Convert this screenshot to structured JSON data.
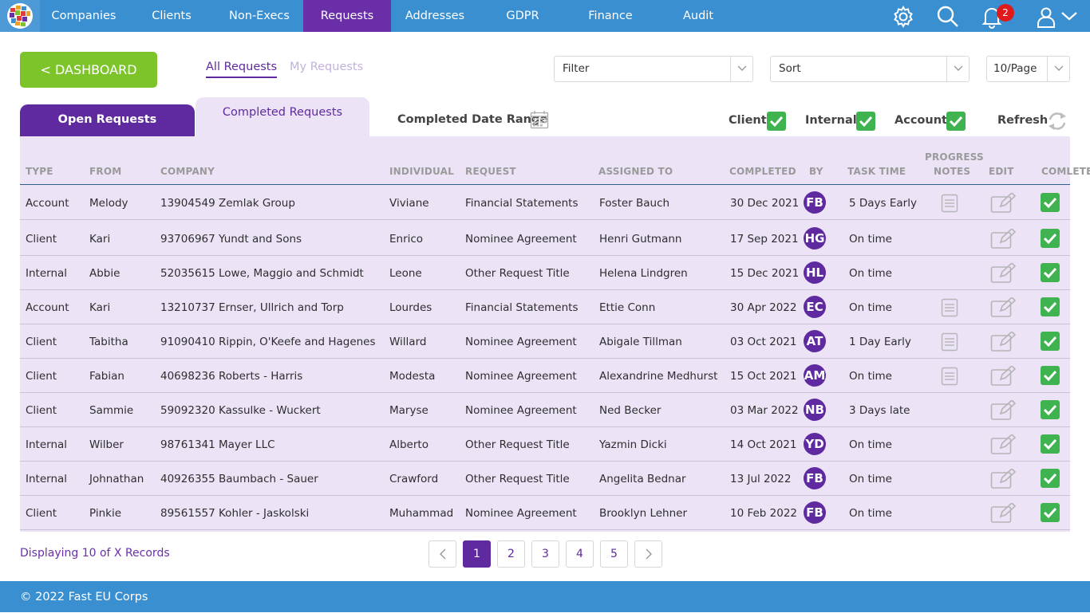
{
  "nav": {
    "items": [
      {
        "label": "Companies"
      },
      {
        "label": "Clients"
      },
      {
        "label": "Non-Execs"
      },
      {
        "label": "Requests",
        "active": true
      },
      {
        "label": "Addresses"
      },
      {
        "label": "GDPR"
      },
      {
        "label": "Finance"
      },
      {
        "label": "Audit"
      }
    ],
    "notification_count": "2",
    "icons": [
      "gear-icon",
      "search-icon",
      "bell-icon",
      "user-icon",
      "chevron-down-icon"
    ]
  },
  "toolbar": {
    "dashboard_label": "< DASHBOARD",
    "all_requests": "All Requests",
    "my_requests": "My Requests",
    "filter_value": "Filter",
    "sort_value": "Sort",
    "per_page_value": "10/Page"
  },
  "tabs": {
    "open": "Open Requests",
    "completed": "Completed Requests"
  },
  "filters": {
    "date_range": "Completed Date Range",
    "client": "Client",
    "internal": "Internal",
    "account": "Account",
    "refresh": "Refresh"
  },
  "table": {
    "headers": {
      "type": "TYPE",
      "from": "FROM",
      "company": "COMPANY",
      "individual": "INDIVIDUAL",
      "request": "REQUEST",
      "assigned": "ASSIGNED TO",
      "completed": "COMPLETED",
      "by": "BY",
      "task_time": "TASK TIME",
      "progress_1": "PROGRESS",
      "progress_2": "NOTES",
      "edit": "EDIT",
      "complete": "COMLETE"
    },
    "rows": [
      {
        "type": "Account",
        "from": "Melody",
        "number": "13904549",
        "company": "Zemlak Group",
        "individual": "Viviane",
        "request": "Financial Statements",
        "assigned": "Foster Bauch",
        "completed": "30 Dec 2021",
        "by": "FB",
        "task_time": "5 Days Early",
        "notes": true
      },
      {
        "type": "Client",
        "from": "Kari",
        "number": "93706967",
        "company": "Yundt and Sons",
        "individual": "Enrico",
        "request": "Nominee Agreement",
        "assigned": "Henri Gutmann",
        "completed": "17 Sep 2021",
        "by": "HG",
        "task_time": "On time",
        "notes": false
      },
      {
        "type": "Internal",
        "from": "Abbie",
        "number": "52035615",
        "company": "Lowe, Maggio and Schmidt",
        "individual": "Leone",
        "request": "Other Request Title",
        "assigned": "Helena Lindgren",
        "completed": "15 Dec 2021",
        "by": "HL",
        "task_time": "On time",
        "notes": false
      },
      {
        "type": "Account",
        "from": "Kari",
        "number": "13210737",
        "company": "Ernser, Ullrich and Torp",
        "individual": "Lourdes",
        "request": "Financial Statements",
        "assigned": "Ettie Conn",
        "completed": "30 Apr 2022",
        "by": "EC",
        "task_time": "On time",
        "notes": true
      },
      {
        "type": "Client",
        "from": "Tabitha",
        "number": "91090410",
        "company": "Rippin, O'Keefe and Hagenes",
        "individual": "Willard",
        "request": "Nominee Agreement",
        "assigned": "Abigale Tillman",
        "completed": "03 Oct 2021",
        "by": "AT",
        "task_time": "1 Day Early",
        "notes": true
      },
      {
        "type": "Client",
        "from": "Fabian",
        "number": "40698236",
        "company": "Roberts - Harris",
        "individual": "Modesta",
        "request": "Nominee Agreement",
        "assigned": "Alexandrine Medhurst",
        "completed": "15 Oct 2021",
        "by": "AM",
        "task_time": "On time",
        "notes": true
      },
      {
        "type": "Client",
        "from": "Sammie",
        "number": "59092320",
        "company": "Kassulke - Wuckert",
        "individual": "Maryse",
        "request": "Nominee Agreement",
        "assigned": "Ned Becker",
        "completed": "03 Mar 2022",
        "by": "NB",
        "task_time": "3 Days late",
        "notes": false
      },
      {
        "type": "Internal",
        "from": "Wilber",
        "number": "98761341",
        "company": "Mayer LLC",
        "individual": "Alberto",
        "request": "Other Request Title",
        "assigned": "Yazmin Dicki",
        "completed": "14 Oct 2021",
        "by": "YD",
        "task_time": "On time",
        "notes": false
      },
      {
        "type": "Internal",
        "from": "Johnathan",
        "number": "40926355",
        "company": "Baumbach - Sauer",
        "individual": "Crawford",
        "request": "Other Request Title",
        "assigned": "Angelita Bednar",
        "completed": "13 Jul 2022",
        "by": "FB",
        "task_time": "On time",
        "notes": false
      },
      {
        "type": "Client",
        "from": "Pinkie",
        "number": "89561557",
        "company": "Kohler - Jaskolski",
        "individual": "Muhammad",
        "request": "Nominee Agreement",
        "assigned": "Brooklyn Lehner",
        "completed": "10 Feb 2022",
        "by": "FB",
        "task_time": "On time",
        "notes": false
      }
    ]
  },
  "pagination": {
    "displaying": "Displaying 10 of X Records",
    "pages": [
      "1",
      "2",
      "3",
      "4",
      "5"
    ],
    "current": "1"
  },
  "footer": {
    "text": "© 2022 Fast EU Corps"
  },
  "colors": {
    "nav_blue": "#3a8fd1",
    "purple": "#5f2aa0",
    "green": "#7cc42a",
    "check_green": "#3fb34f",
    "table_bg": "#ece3f7"
  }
}
